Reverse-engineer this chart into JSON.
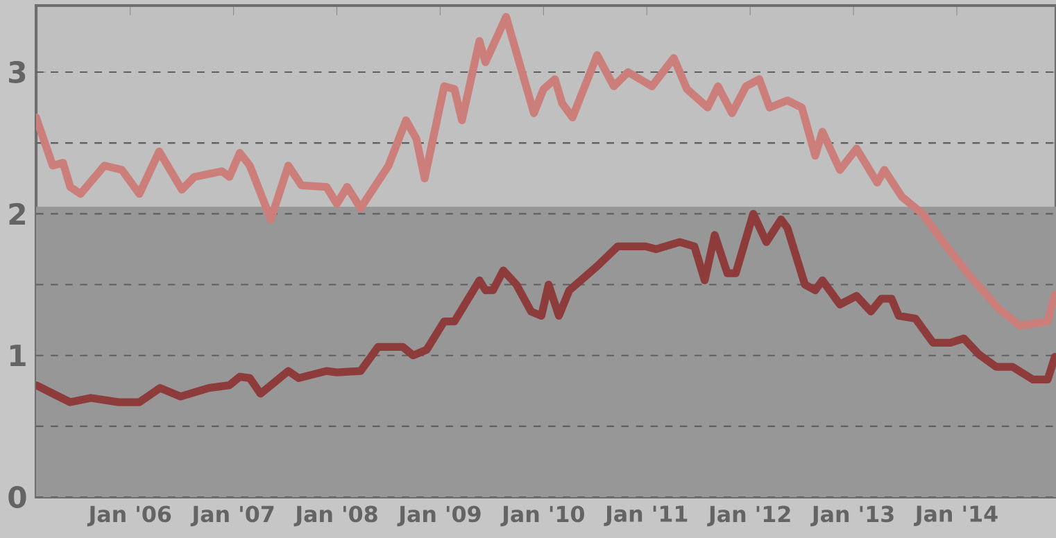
{
  "chart_data": {
    "type": "line",
    "xlim": [
      "2005-02-03",
      "2014-12-17"
    ],
    "ylim": [
      0,
      3.47
    ],
    "xticks": [
      {
        "value": "2006-01-01",
        "label": "Jan '06"
      },
      {
        "value": "2007-01-01",
        "label": "Jan '07"
      },
      {
        "value": "2008-01-01",
        "label": "Jan '08"
      },
      {
        "value": "2009-01-01",
        "label": "Jan '09"
      },
      {
        "value": "2010-01-01",
        "label": "Jan '10"
      },
      {
        "value": "2011-01-01",
        "label": "Jan '11"
      },
      {
        "value": "2012-01-01",
        "label": "Jan '12"
      },
      {
        "value": "2013-01-01",
        "label": "Jan '13"
      },
      {
        "value": "2014-01-01",
        "label": "Jan '14"
      }
    ],
    "yticks": [
      0,
      {
        "value": 0.5,
        "label": null
      },
      1,
      {
        "value": 1.5,
        "label": null
      },
      2,
      {
        "value": 2.5,
        "label": null
      },
      3
    ],
    "grid": "y",
    "line_style": "solid",
    "bands": [
      {
        "axis": "y",
        "from": 0,
        "to": 2.05,
        "color": "#979797"
      }
    ],
    "series": [
      {
        "color": "#cc7f7a",
        "x": [
          "2005-02-03",
          "2005-04-01",
          "2005-05-07",
          "2005-06-02",
          "2005-07-08",
          "2005-10-01",
          "2005-12-02",
          "2006-02-03",
          "2006-04-12",
          "2006-07-01",
          "2006-08-14",
          "2006-11-21",
          "2006-12-17",
          "2007-01-23",
          "2007-02-28",
          "2007-05-11",
          "2007-07-12",
          "2007-08-28",
          "2007-11-25",
          "2008-01-01",
          "2008-02-07",
          "2008-03-24",
          "2008-07-01",
          "2008-09-02",
          "2008-10-08",
          "2008-11-07",
          "2009-01-15",
          "2009-02-21",
          "2009-03-17",
          "2009-05-18",
          "2009-06-09",
          "2009-08-21",
          "2009-11-28",
          "2010-01-01",
          "2010-02-11",
          "2010-03-06",
          "2010-04-12",
          "2010-07-08",
          "2010-09-06",
          "2010-10-26",
          "2011-01-19",
          "2011-04-05",
          "2011-05-21",
          "2011-08-03",
          "2011-09-09",
          "2011-10-28",
          "2011-12-17",
          "2012-02-03",
          "2012-03-09",
          "2012-05-11",
          "2012-07-01",
          "2012-08-18",
          "2012-09-13",
          "2012-11-14",
          "2013-01-12",
          "2013-02-18",
          "2013-03-24",
          "2013-04-19",
          "2013-06-20",
          "2013-09-02",
          "2013-11-14",
          "2014-02-21",
          "2014-05-28",
          "2014-08-11",
          "2014-11-18",
          "2014-12-13"
        ],
        "values": [
          2.68,
          2.34,
          2.36,
          2.19,
          2.14,
          2.34,
          2.31,
          2.14,
          2.44,
          2.17,
          2.26,
          2.3,
          2.26,
          2.43,
          2.34,
          1.96,
          2.34,
          2.2,
          2.19,
          2.07,
          2.19,
          2.04,
          2.34,
          2.66,
          2.53,
          2.25,
          2.9,
          2.88,
          2.66,
          3.22,
          3.07,
          3.39,
          2.71,
          2.88,
          2.95,
          2.78,
          2.68,
          3.12,
          2.9,
          3.0,
          2.9,
          3.1,
          2.88,
          2.75,
          2.9,
          2.71,
          2.9,
          2.95,
          2.75,
          2.8,
          2.75,
          2.41,
          2.58,
          2.31,
          2.46,
          2.34,
          2.22,
          2.31,
          2.12,
          2.0,
          1.8,
          1.55,
          1.33,
          1.21,
          1.24,
          1.43
        ]
      },
      {
        "color": "#8e3b3b",
        "x": [
          "2005-02-03",
          "2005-04-12",
          "2005-06-02",
          "2005-08-14",
          "2005-11-21",
          "2006-02-03",
          "2006-04-15",
          "2006-06-27",
          "2006-10-05",
          "2006-12-17",
          "2007-01-23",
          "2007-02-28",
          "2007-04-05",
          "2007-07-12",
          "2007-08-18",
          "2007-11-25",
          "2008-01-01",
          "2008-03-24",
          "2008-05-25",
          "2008-08-21",
          "2008-09-27",
          "2008-11-14",
          "2009-01-15",
          "2009-02-21",
          "2009-03-27",
          "2009-05-18",
          "2009-06-09",
          "2009-07-05",
          "2009-08-11",
          "2009-09-27",
          "2009-11-18",
          "2009-12-24",
          "2010-01-19",
          "2010-02-25",
          "2010-04-01",
          "2010-07-08",
          "2010-09-20",
          "2010-12-27",
          "2011-02-03",
          "2011-04-26",
          "2011-06-17",
          "2011-07-23",
          "2011-08-28",
          "2011-10-12",
          "2011-11-11",
          "2012-01-12",
          "2012-02-28",
          "2012-04-19",
          "2012-05-11",
          "2012-07-12",
          "2012-08-18",
          "2012-09-13",
          "2012-11-14",
          "2013-01-12",
          "2013-03-02",
          "2013-04-08",
          "2013-05-14",
          "2013-06-09",
          "2013-08-07",
          "2013-10-08",
          "2013-12-09",
          "2014-01-26",
          "2014-03-17",
          "2014-05-18",
          "2014-07-15",
          "2014-09-27",
          "2014-11-18",
          "2014-12-13"
        ],
        "values": [
          0.79,
          0.72,
          0.67,
          0.7,
          0.67,
          0.67,
          0.77,
          0.71,
          0.77,
          0.79,
          0.85,
          0.84,
          0.73,
          0.89,
          0.84,
          0.89,
          0.88,
          0.89,
          1.06,
          1.06,
          1.0,
          1.04,
          1.24,
          1.24,
          1.36,
          1.53,
          1.46,
          1.46,
          1.6,
          1.5,
          1.31,
          1.28,
          1.5,
          1.28,
          1.46,
          1.63,
          1.77,
          1.77,
          1.75,
          1.8,
          1.77,
          1.53,
          1.85,
          1.58,
          1.58,
          2.0,
          1.8,
          1.96,
          1.9,
          1.5,
          1.46,
          1.53,
          1.36,
          1.42,
          1.31,
          1.4,
          1.4,
          1.28,
          1.26,
          1.09,
          1.09,
          1.12,
          1.01,
          0.92,
          0.92,
          0.83,
          0.83,
          0.99
        ]
      }
    ]
  }
}
